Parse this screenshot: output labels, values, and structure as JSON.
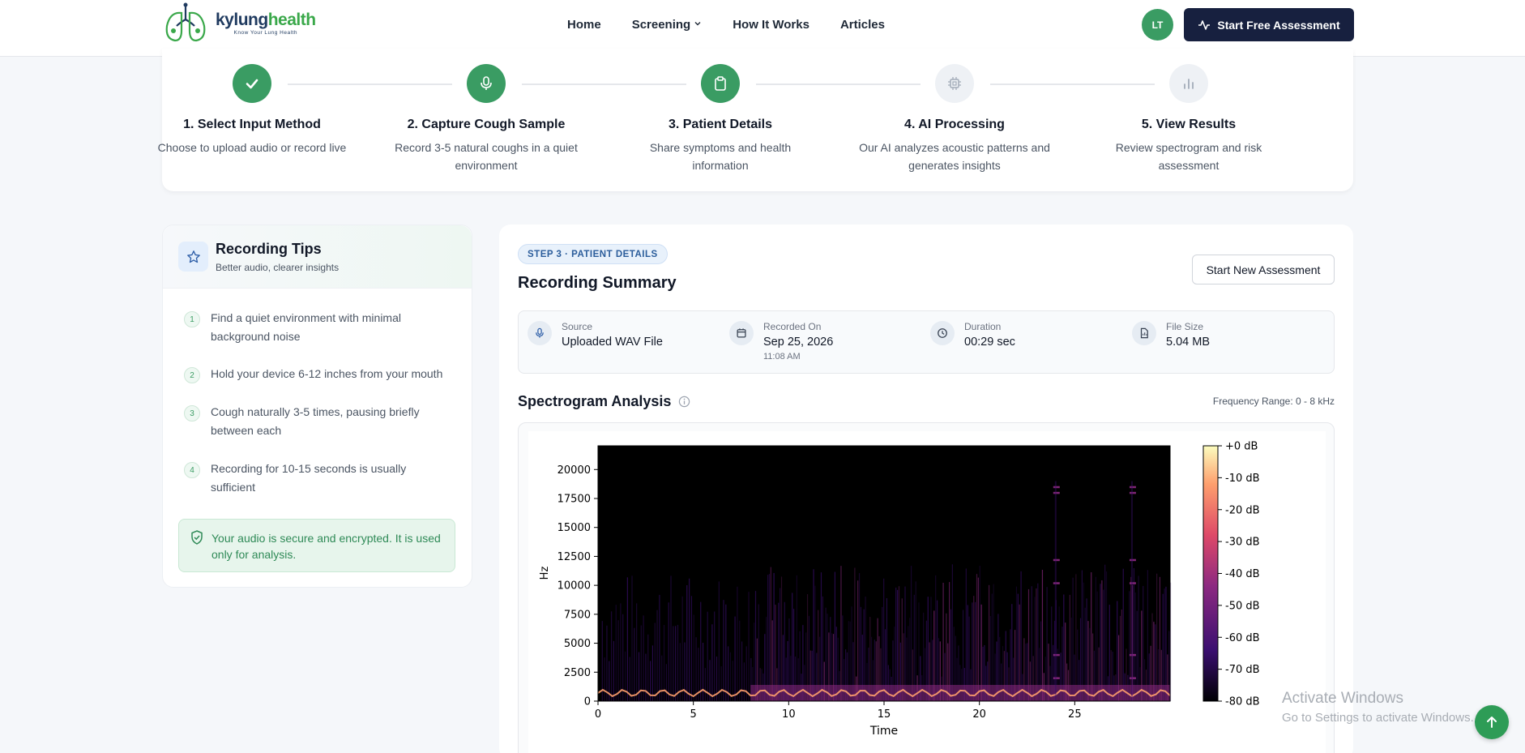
{
  "header": {
    "logo": {
      "name_part1": "kylung",
      "name_part2": "health",
      "tagline": "Know Your Lung Health"
    },
    "nav": [
      {
        "label": "Home"
      },
      {
        "label": "Screening",
        "has_dropdown": true
      },
      {
        "label": "How It Works"
      },
      {
        "label": "Articles"
      }
    ],
    "avatar_initials": "LT",
    "cta_label": "Start Free Assessment"
  },
  "stepper": {
    "steps": [
      {
        "title": "1. Select Input Method",
        "desc": "Choose to upload audio or record live",
        "icon": "check-icon",
        "state": "done"
      },
      {
        "title": "2. Capture Cough Sample",
        "desc": "Record 3-5 natural coughs in a quiet environment",
        "icon": "mic-icon",
        "state": "done"
      },
      {
        "title": "3. Patient Details",
        "desc": "Share symptoms and health information",
        "icon": "clipboard-icon",
        "state": "active"
      },
      {
        "title": "4. AI Processing",
        "desc": "Our AI analyzes acoustic patterns and generates insights",
        "icon": "cpu-icon",
        "state": "todo"
      },
      {
        "title": "5. View Results",
        "desc": "Review spectrogram and risk assessment",
        "icon": "bar-chart-icon",
        "state": "todo"
      }
    ]
  },
  "tips": {
    "title": "Recording Tips",
    "subtitle": "Better audio, clearer insights",
    "items": [
      {
        "num": "1",
        "text": "Find a quiet environment with minimal background noise"
      },
      {
        "num": "2",
        "text": "Hold your device 6-12 inches from your mouth"
      },
      {
        "num": "3",
        "text": "Cough naturally 3-5 times, pausing briefly between each"
      },
      {
        "num": "4",
        "text": "Recording for 10-15 seconds is usually sufficient"
      }
    ],
    "secure_note": "Your audio is secure and encrypted. It is used only for analysis."
  },
  "summary": {
    "badge": "STEP 3 · PATIENT DETAILS",
    "title": "Recording Summary",
    "new_assessment_label": "Start New Assessment",
    "meta": [
      {
        "label": "Source",
        "value": "Uploaded WAV File",
        "icon": "mic-icon"
      },
      {
        "label": "Recorded On",
        "value": "Sep 25, 2026",
        "sub": "11:08 AM",
        "icon": "calendar-icon"
      },
      {
        "label": "Duration",
        "value": "00:29 sec",
        "icon": "clock-icon"
      },
      {
        "label": "File Size",
        "value": "5.04 MB",
        "icon": "file-icon"
      }
    ],
    "spectrogram_title": "Spectrogram Analysis",
    "frequency_range": "Frequency Range: 0 - 8 kHz"
  },
  "chart_data": {
    "type": "heatmap",
    "xlabel": "Time",
    "ylabel": "Hz",
    "x_ticks": [
      0,
      5,
      10,
      15,
      20,
      25
    ],
    "y_ticks": [
      0,
      2500,
      5000,
      7500,
      10000,
      12500,
      15000,
      17500,
      20000
    ],
    "xlim": [
      0,
      30
    ],
    "ylim": [
      0,
      22050
    ],
    "colorbar": {
      "labels": [
        "+0 dB",
        "-10 dB",
        "-20 dB",
        "-30 dB",
        "-40 dB",
        "-50 dB",
        "-60 dB",
        "-70 dB",
        "-80 dB"
      ],
      "range_db": [
        -80,
        0
      ],
      "colormap": [
        "#000004",
        "#3b0f70",
        "#8c2981",
        "#de4968",
        "#fe9f6d",
        "#fcfdbf"
      ]
    }
  },
  "watermark": {
    "line1": "Activate Windows",
    "line2": "Go to Settings to activate Windows."
  },
  "colors": {
    "brand_green": "#3a9c63",
    "navy": "#17203f",
    "accent_blue": "#2b5d9b"
  }
}
